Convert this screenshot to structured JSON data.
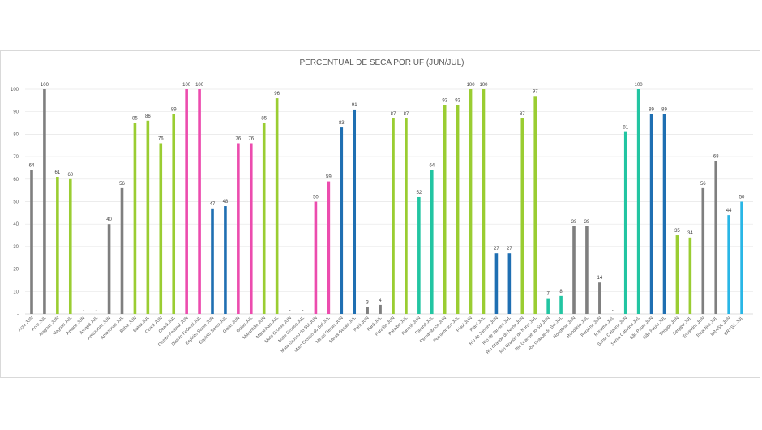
{
  "chart_data": {
    "type": "bar",
    "title": "PERCENTUAL DE SECA POR UF (JUN/JUL)",
    "xlabel": "",
    "ylabel": "",
    "ylim": [
      0,
      100
    ],
    "yticks": [
      "-",
      "10",
      "20",
      "30",
      "40",
      "50",
      "60",
      "70",
      "80",
      "90",
      "100"
    ],
    "grid": true,
    "legend": "none",
    "palette": {
      "grey": "#7f7f7f",
      "green": "#9acd32",
      "pink": "#ec4cae",
      "blue": "#1f6fb2",
      "teal": "#22c5a2",
      "cyan": "#29b6e6"
    },
    "bars": [
      {
        "label": "Acre JUN",
        "value": 64,
        "shown": "64",
        "color": "#7f7f7f"
      },
      {
        "label": "Acre JUL",
        "value": 100,
        "shown": "100",
        "color": "#7f7f7f"
      },
      {
        "label": "Alagoas JUN",
        "value": 61,
        "shown": "61",
        "color": "#9acd32"
      },
      {
        "label": "Alagoas JUL",
        "value": 60,
        "shown": "60",
        "color": "#9acd32"
      },
      {
        "label": "Amapá JUN",
        "value": 0,
        "shown": "-",
        "color": "#7f7f7f"
      },
      {
        "label": "Amapá JUL",
        "value": 0,
        "shown": "-",
        "color": "#7f7f7f"
      },
      {
        "label": "Amazonas JUN",
        "value": 40,
        "shown": "40",
        "color": "#7f7f7f"
      },
      {
        "label": "Amazonas JUL",
        "value": 56,
        "shown": "56",
        "color": "#7f7f7f"
      },
      {
        "label": "Bahia JUN",
        "value": 85,
        "shown": "85",
        "color": "#9acd32"
      },
      {
        "label": "Bahia JUL",
        "value": 86,
        "shown": "86",
        "color": "#9acd32"
      },
      {
        "label": "Ceará JUN",
        "value": 76,
        "shown": "76",
        "color": "#9acd32"
      },
      {
        "label": "Ceará JUL",
        "value": 89,
        "shown": "89",
        "color": "#9acd32"
      },
      {
        "label": "Distrito Federal JUN",
        "value": 100,
        "shown": "100",
        "color": "#ec4cae"
      },
      {
        "label": "Distrito Federal JUL",
        "value": 100,
        "shown": "100",
        "color": "#ec4cae"
      },
      {
        "label": "Espírito Santo JUN",
        "value": 47,
        "shown": "47",
        "color": "#1f6fb2"
      },
      {
        "label": "Espírito Santo JUL",
        "value": 48,
        "shown": "48",
        "color": "#1f6fb2"
      },
      {
        "label": "Goiás JUN",
        "value": 76,
        "shown": "76",
        "color": "#ec4cae"
      },
      {
        "label": "Goiás JUL",
        "value": 76,
        "shown": "76",
        "color": "#ec4cae"
      },
      {
        "label": "Maranhão JUN",
        "value": 85,
        "shown": "85",
        "color": "#9acd32"
      },
      {
        "label": "Maranhão JUL",
        "value": 96,
        "shown": "96",
        "color": "#9acd32"
      },
      {
        "label": "Mato Grosso JUN",
        "value": 0,
        "shown": "-",
        "color": "#ec4cae"
      },
      {
        "label": "Mato Grosso JUL",
        "value": 0,
        "shown": "-",
        "color": "#ec4cae"
      },
      {
        "label": "Mato Grosso do Sul JUN",
        "value": 50,
        "shown": "50",
        "color": "#ec4cae"
      },
      {
        "label": "Mato Grosso do Sul JUL",
        "value": 59,
        "shown": "59",
        "color": "#ec4cae"
      },
      {
        "label": "Minas Gerais JUN",
        "value": 83,
        "shown": "83",
        "color": "#1f6fb2"
      },
      {
        "label": "Minas Gerais JUL",
        "value": 91,
        "shown": "91",
        "color": "#1f6fb2"
      },
      {
        "label": "Pará JUN",
        "value": 3,
        "shown": "3",
        "color": "#7f7f7f"
      },
      {
        "label": "Pará JUL",
        "value": 4,
        "shown": "4",
        "color": "#7f7f7f"
      },
      {
        "label": "Paraíba JUN",
        "value": 87,
        "shown": "87",
        "color": "#9acd32"
      },
      {
        "label": "Paraíba JUL",
        "value": 87,
        "shown": "87",
        "color": "#9acd32"
      },
      {
        "label": "Paraná JUN",
        "value": 52,
        "shown": "52",
        "color": "#22c5a2"
      },
      {
        "label": "Paraná JUL",
        "value": 64,
        "shown": "64",
        "color": "#22c5a2"
      },
      {
        "label": "Pernambuco JUN",
        "value": 93,
        "shown": "93",
        "color": "#9acd32"
      },
      {
        "label": "Pernambuco JUL",
        "value": 93,
        "shown": "93",
        "color": "#9acd32"
      },
      {
        "label": "Piauí JUN",
        "value": 100,
        "shown": "100",
        "color": "#9acd32"
      },
      {
        "label": "Piauí JUL",
        "value": 100,
        "shown": "100",
        "color": "#9acd32"
      },
      {
        "label": "Rio de Janeiro JUN",
        "value": 27,
        "shown": "27",
        "color": "#1f6fb2"
      },
      {
        "label": "Rio de Janeiro JUL",
        "value": 27,
        "shown": "27",
        "color": "#1f6fb2"
      },
      {
        "label": "Rio Grande do Norte JUN",
        "value": 87,
        "shown": "87",
        "color": "#9acd32"
      },
      {
        "label": "Rio Grande do Norte JUL",
        "value": 97,
        "shown": "97",
        "color": "#9acd32"
      },
      {
        "label": "Rio Grande do Sul JUN",
        "value": 7,
        "shown": "7",
        "color": "#22c5a2"
      },
      {
        "label": "Rio Grande do Sul JUL",
        "value": 8,
        "shown": "8",
        "color": "#22c5a2"
      },
      {
        "label": "Rondônia JUN",
        "value": 39,
        "shown": "39",
        "color": "#7f7f7f"
      },
      {
        "label": "Rondônia JUL",
        "value": 39,
        "shown": "39",
        "color": "#7f7f7f"
      },
      {
        "label": "Roraima JUN",
        "value": 14,
        "shown": "14",
        "color": "#7f7f7f"
      },
      {
        "label": "Roraima JUL",
        "value": 0,
        "shown": "-",
        "color": "#7f7f7f"
      },
      {
        "label": "Santa Catarina JUN",
        "value": 81,
        "shown": "81",
        "color": "#22c5a2"
      },
      {
        "label": "Santa Catarina JUL",
        "value": 100,
        "shown": "100",
        "color": "#22c5a2"
      },
      {
        "label": "São Paulo JUN",
        "value": 89,
        "shown": "89",
        "color": "#1f6fb2"
      },
      {
        "label": "São Paulo JUL",
        "value": 89,
        "shown": "89",
        "color": "#1f6fb2"
      },
      {
        "label": "Sergipe JUN",
        "value": 35,
        "shown": "35",
        "color": "#9acd32"
      },
      {
        "label": "Sergipe JUL",
        "value": 34,
        "shown": "34",
        "color": "#9acd32"
      },
      {
        "label": "Tocantins JUN",
        "value": 56,
        "shown": "56",
        "color": "#7f7f7f"
      },
      {
        "label": "Tocantins JUL",
        "value": 68,
        "shown": "68",
        "color": "#7f7f7f"
      },
      {
        "label": "BRASIL JUN",
        "value": 44,
        "shown": "44",
        "color": "#29b6e6"
      },
      {
        "label": "BRASIL JUL",
        "value": 50,
        "shown": "50",
        "color": "#29b6e6"
      }
    ]
  }
}
